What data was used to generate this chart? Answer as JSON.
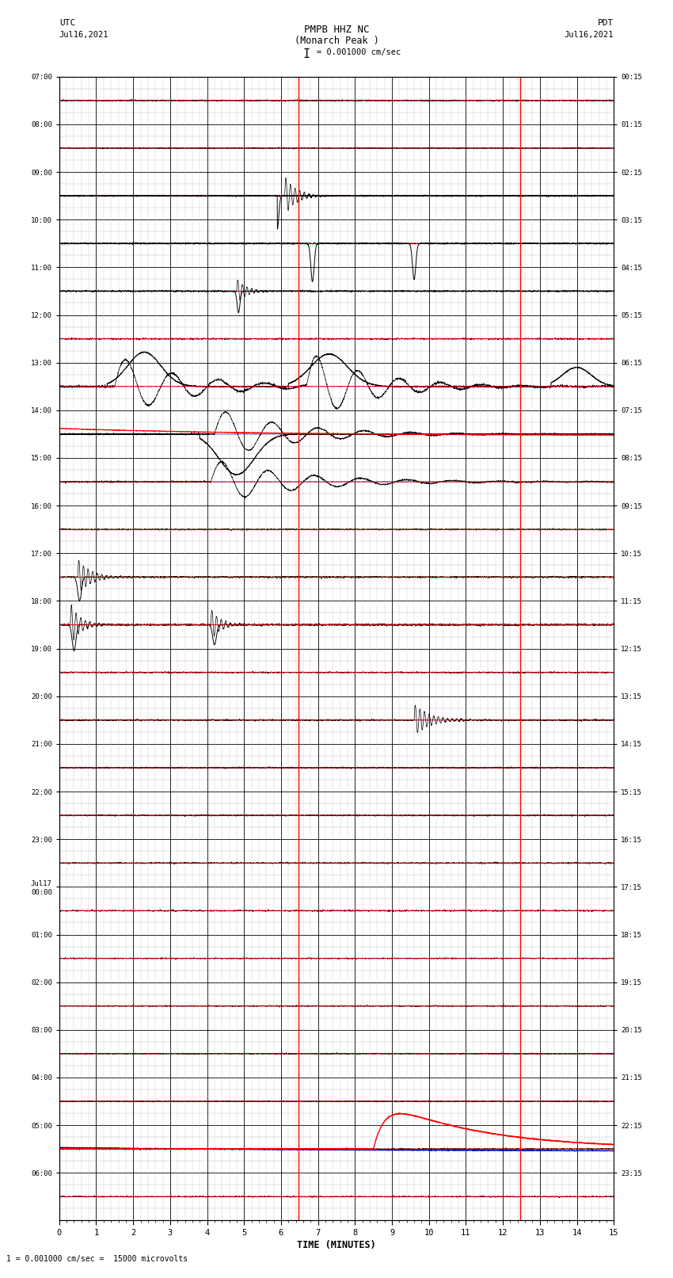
{
  "title_line1": "PMPB HHZ NC",
  "title_line2": "(Monarch Peak )",
  "scale_label": "I = 0.001000 cm/sec",
  "left_label_1": "UTC",
  "left_label_2": "Jul16,2021",
  "right_label_1": "PDT",
  "right_label_2": "Jul16,2021",
  "bottom_label": "TIME (MINUTES)",
  "bottom_note": "1 = 0.001000 cm/sec =  15000 microvolts",
  "xlim": [
    0,
    15
  ],
  "total_rows": 24,
  "utc_labels": [
    "07:00",
    "08:00",
    "09:00",
    "10:00",
    "11:00",
    "12:00",
    "13:00",
    "14:00",
    "15:00",
    "16:00",
    "17:00",
    "18:00",
    "19:00",
    "20:00",
    "21:00",
    "22:00",
    "23:00",
    "Jul17\n00:00",
    "01:00",
    "02:00",
    "03:00",
    "04:00",
    "05:00",
    "06:00"
  ],
  "pdt_labels": [
    "00:15",
    "01:15",
    "02:15",
    "03:15",
    "04:15",
    "05:15",
    "06:15",
    "07:15",
    "08:15",
    "09:15",
    "10:15",
    "11:15",
    "12:15",
    "13:15",
    "14:15",
    "15:15",
    "16:15",
    "17:15",
    "18:15",
    "19:15",
    "20:15",
    "21:15",
    "22:15",
    "23:15"
  ],
  "bg_color": "#ffffff",
  "trace_black": "#000000",
  "trace_red": "#ff0000",
  "trace_blue": "#0000bb",
  "trace_green": "#007700",
  "grid_major": "#000000",
  "grid_minor": "#aaaaaa",
  "red_vline_x": [
    6.47,
    12.47
  ],
  "sub_divisions": 4,
  "minor_v_div": 5
}
